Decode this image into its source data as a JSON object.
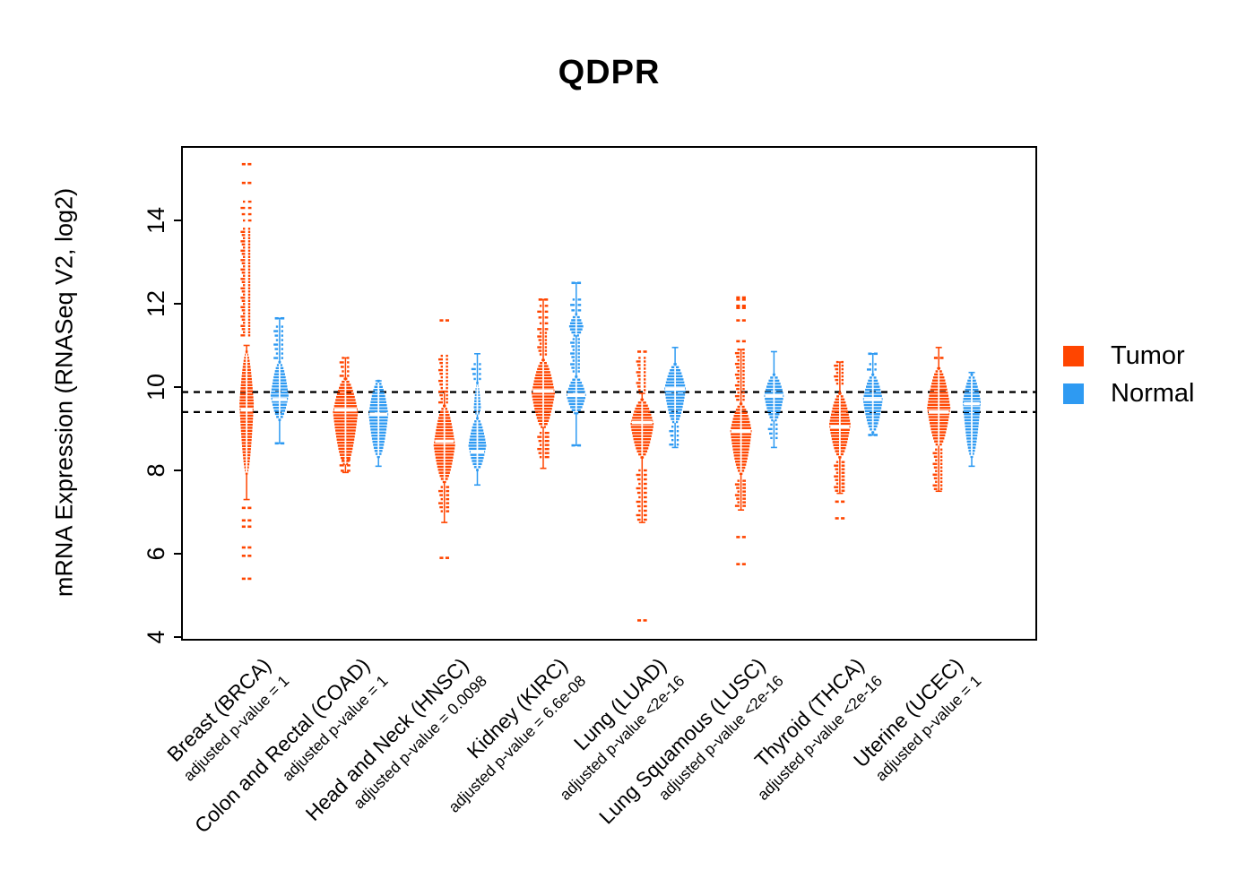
{
  "chart_data": {
    "type": "violin",
    "title": "QDPR",
    "ylabel": "mRNA Expression (RNASeq V2, log2)",
    "yticks": [
      4,
      6,
      8,
      10,
      12,
      14
    ],
    "ylim": [
      3.9,
      15.8
    ],
    "grid": false,
    "legend_position": "right",
    "reference_lines": {
      "values": [
        9.88,
        9.4
      ],
      "style": "dashed",
      "color": "#000000"
    },
    "series": [
      {
        "name": "Tumor",
        "color": "#FF4500"
      },
      {
        "name": "Normal",
        "color": "#2E9AF2"
      }
    ],
    "groups": [
      {
        "label": "Breast (BRCA)",
        "pvalue": "adjusted p-value = 1",
        "tumor": {
          "median": 9.45,
          "whisker": [
            7.3,
            11.0
          ],
          "lobes": [
            {
              "lo": 7.9,
              "hi": 10.85,
              "peak": 9.6,
              "w": 8
            }
          ],
          "stacks": [
            {
              "lo": 11.2,
              "hi": 13.8,
              "gap": 3.5
            },
            {
              "lo": 13.95,
              "hi": 14.45,
              "gap": 7
            }
          ],
          "outliers": [
            15.35,
            14.9,
            7.1,
            6.8,
            6.65,
            6.15,
            5.95,
            5.4
          ]
        },
        "normal": {
          "median": 9.7,
          "whisker": [
            8.65,
            11.65
          ],
          "lobes": [
            {
              "lo": 9.2,
              "hi": 10.6,
              "peak": 9.8,
              "w": 10
            }
          ],
          "stacks": [
            {
              "lo": 10.65,
              "hi": 11.45,
              "gap": 5
            }
          ],
          "outliers": [
            11.65,
            8.65
          ]
        }
      },
      {
        "label": "Colon and Rectal (COAD)",
        "pvalue": "adjusted p-value = 1",
        "tumor": {
          "median": 9.45,
          "whisker": [
            7.95,
            10.7
          ],
          "lobes": [
            {
              "lo": 8.1,
              "hi": 10.2,
              "peak": 9.4,
              "w": 14
            }
          ],
          "stacks": [
            {
              "lo": 10.25,
              "hi": 10.7,
              "gap": 5
            },
            {
              "lo": 7.95,
              "hi": 8.25,
              "gap": 6
            }
          ],
          "outliers": []
        },
        "normal": {
          "median": 9.35,
          "whisker": [
            8.1,
            10.15
          ],
          "lobes": [
            {
              "lo": 8.3,
              "hi": 10.15,
              "peak": 9.35,
              "w": 11
            }
          ],
          "stacks": [],
          "outliers": []
        }
      },
      {
        "label": "Head and Neck (HNSC)",
        "pvalue": "adjusted p-value = 0.0098",
        "tumor": {
          "median": 8.7,
          "whisker": [
            6.75,
            9.9
          ],
          "lobes": [
            {
              "lo": 7.7,
              "hi": 9.55,
              "peak": 8.6,
              "w": 12
            }
          ],
          "stacks": [
            {
              "lo": 9.6,
              "hi": 10.75,
              "gap": 4
            },
            {
              "lo": 7.0,
              "hi": 7.6,
              "gap": 4.5
            }
          ],
          "outliers": [
            11.6,
            5.9
          ]
        },
        "normal": {
          "median": 8.45,
          "whisker": [
            7.65,
            10.8
          ],
          "lobes": [
            {
              "lo": 8.0,
              "hi": 9.25,
              "peak": 8.6,
              "w": 10
            },
            {
              "lo": 9.3,
              "hi": 10.1,
              "peak": 9.5,
              "w": 4
            }
          ],
          "stacks": [
            {
              "lo": 10.15,
              "hi": 10.55,
              "gap": 5.5
            }
          ],
          "outliers": []
        }
      },
      {
        "label": "Kidney (KIRC)",
        "pvalue": "adjusted p-value = 6.6e-08",
        "tumor": {
          "median": 9.9,
          "whisker": [
            8.05,
            12.1
          ],
          "lobes": [
            {
              "lo": 9.0,
              "hi": 10.65,
              "peak": 9.85,
              "w": 13
            }
          ],
          "stacks": [
            {
              "lo": 10.7,
              "hi": 11.3,
              "gap": 4
            },
            {
              "lo": 11.35,
              "hi": 11.95,
              "gap": 6.5
            },
            {
              "lo": 8.25,
              "hi": 8.9,
              "gap": 4.5
            }
          ],
          "outliers": [
            12.1
          ]
        },
        "normal": {
          "median": 9.8,
          "whisker": [
            8.6,
            12.5
          ],
          "lobes": [
            {
              "lo": 9.35,
              "hi": 10.25,
              "peak": 9.8,
              "w": 11
            },
            {
              "lo": 11.2,
              "hi": 11.75,
              "peak": 11.45,
              "w": 8
            }
          ],
          "stacks": [
            {
              "lo": 10.3,
              "hi": 11.15,
              "gap": 4
            },
            {
              "lo": 11.8,
              "hi": 12.1,
              "gap": 6
            }
          ],
          "outliers": [
            12.5,
            8.6
          ]
        }
      },
      {
        "label": "Lung (LUAD)",
        "pvalue": "adjusted p-value <2e-16",
        "tumor": {
          "median": 9.15,
          "whisker": [
            6.75,
            9.85
          ],
          "lobes": [
            {
              "lo": 8.3,
              "hi": 9.7,
              "peak": 9.1,
              "w": 13
            }
          ],
          "stacks": [
            {
              "lo": 9.9,
              "hi": 10.7,
              "gap": 4
            },
            {
              "lo": 6.8,
              "hi": 8.0,
              "gap": 5
            }
          ],
          "outliers": [
            10.85,
            4.4
          ]
        },
        "normal": {
          "median": 9.95,
          "whisker": [
            8.55,
            10.95
          ],
          "lobes": [
            {
              "lo": 9.1,
              "hi": 10.55,
              "peak": 9.95,
              "w": 12
            }
          ],
          "stacks": [
            {
              "lo": 8.6,
              "hi": 9.05,
              "gap": 5
            }
          ],
          "outliers": []
        }
      },
      {
        "label": "Lung Squamous (LUSC)",
        "pvalue": "adjusted p-value <2e-16",
        "tumor": {
          "median": 8.95,
          "whisker": [
            7.05,
            10.9
          ],
          "lobes": [
            {
              "lo": 7.9,
              "hi": 9.6,
              "peak": 8.95,
              "w": 12
            }
          ],
          "stacks": [
            {
              "lo": 9.65,
              "hi": 10.9,
              "gap": 4
            },
            {
              "lo": 7.1,
              "hi": 7.75,
              "gap": 4
            }
          ],
          "outliers": [
            12.15,
            12.1,
            11.95,
            11.9,
            11.6,
            11.1,
            6.4,
            5.75
          ]
        },
        "normal": {
          "median": 9.8,
          "whisker": [
            8.55,
            10.85
          ],
          "lobes": [
            {
              "lo": 9.15,
              "hi": 10.3,
              "peak": 9.8,
              "w": 11
            }
          ],
          "stacks": [
            {
              "lo": 8.7,
              "hi": 9.1,
              "gap": 5
            }
          ],
          "outliers": []
        }
      },
      {
        "label": "Thyroid (THCA)",
        "pvalue": "adjusted p-value <2e-16",
        "tumor": {
          "median": 9.05,
          "whisker": [
            7.45,
            10.6
          ],
          "lobes": [
            {
              "lo": 8.3,
              "hi": 9.85,
              "peak": 9.1,
              "w": 12
            }
          ],
          "stacks": [
            {
              "lo": 10.05,
              "hi": 10.6,
              "gap": 4
            },
            {
              "lo": 7.5,
              "hi": 8.2,
              "gap": 4
            }
          ],
          "outliers": [
            7.25,
            6.85
          ]
        },
        "normal": {
          "median": 9.7,
          "whisker": [
            8.85,
            10.8
          ],
          "lobes": [
            {
              "lo": 8.9,
              "hi": 10.3,
              "peak": 9.7,
              "w": 11
            }
          ],
          "stacks": [
            {
              "lo": 10.32,
              "hi": 10.55,
              "gap": 6
            }
          ],
          "outliers": [
            10.8,
            8.85
          ]
        }
      },
      {
        "label": "Uterine (UCEC)",
        "pvalue": "adjusted p-value = 1",
        "tumor": {
          "median": 9.4,
          "whisker": [
            7.5,
            10.95
          ],
          "lobes": [
            {
              "lo": 8.55,
              "hi": 10.45,
              "peak": 9.5,
              "w": 13
            }
          ],
          "stacks": [
            {
              "lo": 7.55,
              "hi": 8.5,
              "gap": 4
            }
          ],
          "outliers": [
            10.7
          ]
        },
        "normal": {
          "median": 9.6,
          "whisker": [
            8.1,
            10.35
          ],
          "lobes": [
            {
              "lo": 8.3,
              "hi": 10.3,
              "peak": 9.65,
              "w": 10
            }
          ],
          "stacks": [],
          "outliers": []
        }
      }
    ]
  }
}
